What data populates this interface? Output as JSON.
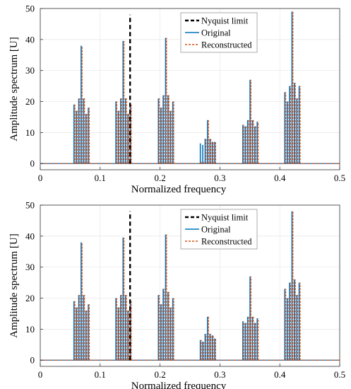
{
  "chart_data": [
    {
      "type": "line",
      "title": "",
      "xlabel": "Normalized frequency",
      "ylabel": "Amplitude spectrum [U]",
      "xlim": [
        0,
        0.5
      ],
      "ylim": [
        -2,
        50
      ],
      "xticks": [
        0,
        0.1,
        0.2,
        0.3,
        0.4,
        0.5
      ],
      "yticks": [
        0,
        10,
        20,
        30,
        40,
        50
      ],
      "xtick_labels": [
        "0",
        "0.1",
        "0.2",
        "0.3",
        "0.4",
        "0.5"
      ],
      "ytick_labels": [
        "0",
        "10",
        "20",
        "30",
        "40",
        "50"
      ],
      "grid": true,
      "legend_position": "top-right",
      "nyquist_limit": 0.15,
      "series": [
        {
          "name": "Nyquist limit",
          "color": "#000000",
          "style": "dashed-vertical",
          "x": [
            0.15,
            0.15
          ],
          "y": [
            0,
            48
          ]
        },
        {
          "name": "Original",
          "color": "#0072BD",
          "style": "solid",
          "x": [
            0.057,
            0.061,
            0.065,
            0.069,
            0.073,
            0.077,
            0.081,
            0.127,
            0.131,
            0.135,
            0.139,
            0.143,
            0.147,
            0.151,
            0.198,
            0.202,
            0.206,
            0.21,
            0.214,
            0.218,
            0.222,
            0.268,
            0.272,
            0.276,
            0.28,
            0.284,
            0.288,
            0.292,
            0.339,
            0.343,
            0.347,
            0.351,
            0.355,
            0.359,
            0.363,
            0.409,
            0.413,
            0.417,
            0.421,
            0.425,
            0.429,
            0.433
          ],
          "y": [
            19,
            17,
            21,
            38,
            21,
            16,
            18,
            20,
            17,
            21,
            39.5,
            21,
            16,
            19,
            21,
            18,
            22,
            40.5,
            22,
            17,
            20,
            6.5,
            6,
            8,
            14,
            8,
            7,
            7,
            12.5,
            12,
            14,
            27,
            14,
            12,
            13.5,
            23,
            20,
            25,
            49,
            26,
            21,
            25
          ]
        },
        {
          "name": "Reconstructed",
          "color": "#D95319",
          "style": "dashed",
          "x": [
            0.057,
            0.061,
            0.065,
            0.069,
            0.073,
            0.077,
            0.081,
            0.127,
            0.131,
            0.135,
            0.139,
            0.143,
            0.147,
            0.151,
            0.198,
            0.202,
            0.206,
            0.21,
            0.214,
            0.218,
            0.222,
            0.268,
            0.272,
            0.276,
            0.28,
            0.284,
            0.288,
            0.292,
            0.339,
            0.343,
            0.347,
            0.351,
            0.355,
            0.359,
            0.363,
            0.409,
            0.413,
            0.417,
            0.421,
            0.425,
            0.429,
            0.433
          ],
          "y": [
            19,
            17,
            21,
            38,
            21,
            16,
            18,
            20,
            17,
            21,
            39.5,
            21,
            16,
            19,
            21,
            18,
            22,
            40.5,
            22,
            17,
            20,
            0.5,
            0.5,
            8,
            14,
            8,
            7,
            7,
            12.5,
            12,
            14,
            27,
            14,
            12,
            13.5,
            23,
            20,
            25,
            49,
            26,
            21,
            25
          ]
        }
      ]
    },
    {
      "type": "line",
      "title": "",
      "xlabel": "Normalized frequency",
      "ylabel": "Amplitude spectrum [U]",
      "xlim": [
        0,
        0.5
      ],
      "ylim": [
        -2,
        50
      ],
      "xticks": [
        0,
        0.1,
        0.2,
        0.3,
        0.4,
        0.5
      ],
      "yticks": [
        0,
        10,
        20,
        30,
        40,
        50
      ],
      "xtick_labels": [
        "0",
        "0.1",
        "0.2",
        "0.3",
        "0.4",
        "0.5"
      ],
      "ytick_labels": [
        "0",
        "10",
        "20",
        "30",
        "40",
        "50"
      ],
      "grid": true,
      "legend_position": "top-right",
      "nyquist_limit": 0.15,
      "series": [
        {
          "name": "Nyquist limit",
          "color": "#000000",
          "style": "dashed-vertical",
          "x": [
            0.15,
            0.15
          ],
          "y": [
            0,
            48
          ]
        },
        {
          "name": "Original",
          "color": "#0072BD",
          "style": "solid",
          "x": [
            0.057,
            0.061,
            0.065,
            0.069,
            0.073,
            0.077,
            0.081,
            0.127,
            0.131,
            0.135,
            0.139,
            0.143,
            0.147,
            0.151,
            0.198,
            0.202,
            0.206,
            0.21,
            0.214,
            0.218,
            0.222,
            0.268,
            0.272,
            0.276,
            0.28,
            0.284,
            0.288,
            0.292,
            0.339,
            0.343,
            0.347,
            0.351,
            0.355,
            0.359,
            0.363,
            0.409,
            0.413,
            0.417,
            0.421,
            0.425,
            0.429,
            0.433
          ],
          "y": [
            19,
            17,
            21,
            38,
            21,
            16,
            18,
            20,
            17,
            21,
            39.5,
            21,
            16,
            19,
            21,
            18,
            23,
            40.5,
            22,
            17,
            20,
            6.5,
            6,
            8.5,
            14,
            8.5,
            8,
            7,
            12.5,
            12,
            14,
            27,
            14,
            12,
            13.5,
            23,
            20,
            25,
            48,
            26,
            21,
            25
          ]
        },
        {
          "name": "Reconstructed",
          "color": "#D95319",
          "style": "dashed",
          "x": [
            0.057,
            0.061,
            0.065,
            0.069,
            0.073,
            0.077,
            0.081,
            0.127,
            0.131,
            0.135,
            0.139,
            0.143,
            0.147,
            0.151,
            0.198,
            0.202,
            0.206,
            0.21,
            0.214,
            0.218,
            0.222,
            0.268,
            0.272,
            0.276,
            0.28,
            0.284,
            0.288,
            0.292,
            0.339,
            0.343,
            0.347,
            0.351,
            0.355,
            0.359,
            0.363,
            0.409,
            0.413,
            0.417,
            0.421,
            0.425,
            0.429,
            0.433
          ],
          "y": [
            19,
            17,
            21,
            38,
            21,
            16,
            18,
            20,
            17,
            21,
            39.5,
            21,
            16,
            19,
            21,
            18,
            23,
            40.5,
            22,
            17,
            20,
            6.5,
            6,
            8.5,
            14,
            8.5,
            8,
            7,
            12.5,
            12,
            14,
            27,
            14,
            12,
            13.5,
            23,
            20,
            25,
            48,
            26,
            21,
            25
          ]
        }
      ]
    }
  ]
}
